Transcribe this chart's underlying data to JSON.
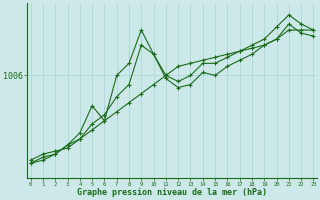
{
  "xlabel": "Graphe pression niveau de la mer (hPa)",
  "ylabel": "",
  "background_color": "#cce8e8",
  "grid_color": "#a8d4d4",
  "line_color": "#1a6b1a",
  "x_ticks": [
    0,
    1,
    2,
    3,
    4,
    5,
    6,
    7,
    8,
    9,
    10,
    11,
    12,
    13,
    14,
    15,
    16,
    17,
    18,
    19,
    20,
    21,
    22,
    23
  ],
  "y_label_val": 1006,
  "ylim": [
    989,
    1018
  ],
  "series": [
    [
      992.0,
      993.0,
      993.5,
      994.0,
      995.5,
      998.0,
      999.5,
      1002.5,
      1004.5,
      1011.0,
      1009.5,
      1005.5,
      1004.0,
      1004.5,
      1006.5,
      1006.0,
      1007.5,
      1008.5,
      1009.5,
      1011.0,
      1012.0,
      1014.5,
      1013.0,
      1012.5
    ],
    [
      991.5,
      992.5,
      993.0,
      994.5,
      996.5,
      1001.0,
      998.5,
      1006.0,
      1008.0,
      1013.5,
      1009.5,
      1006.0,
      1005.0,
      1006.0,
      1008.0,
      1008.0,
      1009.0,
      1010.0,
      1011.0,
      1012.0,
      1014.0,
      1016.0,
      1014.5,
      1013.5
    ],
    [
      991.5,
      992.0,
      993.0,
      994.5,
      995.5,
      997.0,
      998.5,
      1000.0,
      1001.5,
      1003.0,
      1004.5,
      1006.0,
      1007.5,
      1008.0,
      1008.5,
      1009.0,
      1009.5,
      1010.0,
      1010.5,
      1011.0,
      1012.0,
      1013.5,
      1013.5,
      1013.5
    ]
  ]
}
